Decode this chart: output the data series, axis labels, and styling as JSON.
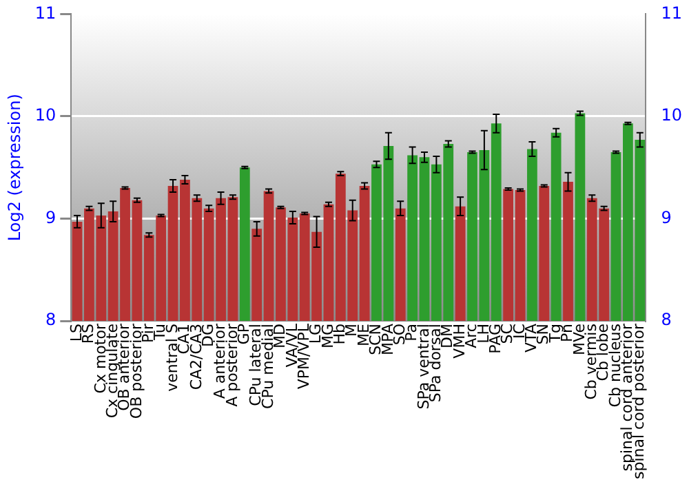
{
  "chart_data": {
    "type": "bar",
    "ylabel": "Log2 (expression)",
    "categories": [
      "LS",
      "RS",
      "Cx motor",
      "Cx cingulate",
      "OB anterior",
      "OB posterior",
      "Pir",
      "Tu",
      "ventral S",
      "CA1",
      "CA2/CA3",
      "DG",
      "A anterior",
      "A posterior",
      "GP",
      "CPu lateral",
      "CPu medial",
      "MD",
      "VA/VL",
      "VPM/VPL",
      "LG",
      "MG",
      "Hb",
      "M",
      "ME",
      "SCN",
      "MPA",
      "SO",
      "Pa",
      "SPa ventral",
      "SPa dorsal",
      "DM",
      "VMH",
      "Arc",
      "LH",
      "PAG",
      "SC",
      "IC",
      "VTA",
      "SN",
      "Tg",
      "Pn",
      "MVe",
      "Cb vermis",
      "Cb lobe",
      "Cb nucleus",
      "spinal cord anterior",
      "spinal cord posterior"
    ],
    "values": [
      8.97,
      9.1,
      9.03,
      9.07,
      9.3,
      9.18,
      8.84,
      9.03,
      9.32,
      9.38,
      9.2,
      9.1,
      9.2,
      9.21,
      9.5,
      8.9,
      9.27,
      9.11,
      9.01,
      9.05,
      8.87,
      9.14,
      9.44,
      9.08,
      9.32,
      9.53,
      9.71,
      9.1,
      9.62,
      9.6,
      9.53,
      9.73,
      9.12,
      9.65,
      9.67,
      9.93,
      9.29,
      9.28,
      9.68,
      9.32,
      9.84,
      9.36,
      10.03,
      9.2,
      9.1,
      9.65,
      9.93,
      9.77
    ],
    "errors": [
      0.06,
      0.02,
      0.12,
      0.1,
      0.01,
      0.02,
      0.02,
      0.01,
      0.06,
      0.04,
      0.03,
      0.03,
      0.06,
      0.02,
      0.01,
      0.07,
      0.02,
      0.01,
      0.06,
      0.01,
      0.15,
      0.02,
      0.02,
      0.1,
      0.03,
      0.03,
      0.13,
      0.07,
      0.08,
      0.05,
      0.08,
      0.03,
      0.09,
      0.01,
      0.19,
      0.09,
      0.01,
      0.01,
      0.07,
      0.01,
      0.04,
      0.09,
      0.02,
      0.03,
      0.02,
      0.01,
      0.01,
      0.07
    ],
    "colors": [
      "#b83434",
      "#b83434",
      "#b83434",
      "#b83434",
      "#b83434",
      "#b83434",
      "#b83434",
      "#b83434",
      "#b83434",
      "#b83434",
      "#b83434",
      "#b83434",
      "#b83434",
      "#b83434",
      "#2e9e2e",
      "#b83434",
      "#b83434",
      "#b83434",
      "#b83434",
      "#b83434",
      "#b83434",
      "#b83434",
      "#b83434",
      "#b83434",
      "#b83434",
      "#2e9e2e",
      "#2e9e2e",
      "#b83434",
      "#2e9e2e",
      "#2e9e2e",
      "#2e9e2e",
      "#2e9e2e",
      "#b83434",
      "#2e9e2e",
      "#2e9e2e",
      "#2e9e2e",
      "#b83434",
      "#b83434",
      "#2e9e2e",
      "#b83434",
      "#2e9e2e",
      "#b83434",
      "#2e9e2e",
      "#b83434",
      "#b83434",
      "#2e9e2e",
      "#2e9e2e",
      "#2e9e2e"
    ],
    "ylim": [
      8,
      11
    ],
    "yticks": [
      8,
      9,
      10,
      11
    ],
    "y2lim": [
      8,
      11
    ],
    "y2ticks": [
      8,
      9,
      10,
      11
    ],
    "grid": "y",
    "legend": false
  }
}
